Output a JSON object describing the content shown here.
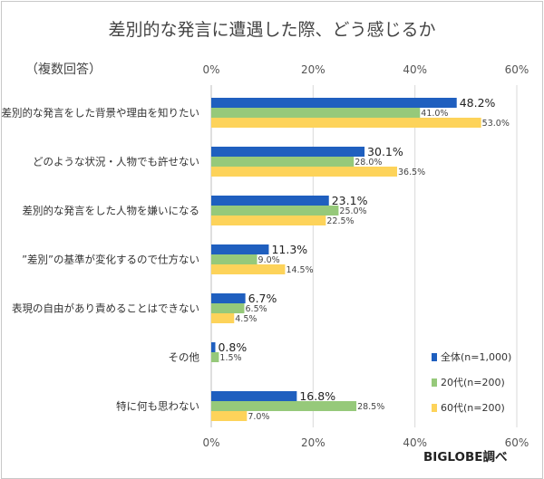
{
  "chart_data": {
    "type": "bar",
    "orientation": "horizontal",
    "title": "差別的な発言に遭遇した際、どう感じるか",
    "subtitle": "（複数回答）",
    "source": "BIGLOBE調べ",
    "xlim": [
      0,
      60
    ],
    "x_ticks": [
      0,
      20,
      40,
      60
    ],
    "x_tick_labels": [
      "0%",
      "20%",
      "40%",
      "60%"
    ],
    "grid": true,
    "legend_position": "right",
    "categories": [
      "差別的な発言をした背景や理由を知りたい",
      "どのような状況・人物でも許せない",
      "差別的な発言をした人物を嫌いになる",
      "”差別”の基準が変化するので仕方ない",
      "表現の自由があり責めることはできない",
      "その他",
      "特に何も思わない"
    ],
    "series": [
      {
        "name": "全体(n=1,000)",
        "color": "#1f5fbf",
        "values": [
          48.2,
          30.1,
          23.1,
          11.3,
          6.7,
          0.8,
          16.8
        ],
        "labels": [
          "48.2%",
          "30.1%",
          "23.1%",
          "11.3%",
          "6.7%",
          "0.8%",
          "16.8%"
        ]
      },
      {
        "name": "20代(n=200)",
        "color": "#96c97a",
        "values": [
          41.0,
          28.0,
          25.0,
          9.0,
          6.5,
          1.5,
          28.5
        ],
        "labels": [
          "41.0%",
          "28.0%",
          "25.0%",
          "9.0%",
          "6.5%",
          "1.5%",
          "28.5%"
        ]
      },
      {
        "name": "60代(n=200)",
        "color": "#fdd35a",
        "values": [
          53.0,
          36.5,
          22.5,
          14.5,
          4.5,
          0.0,
          7.0
        ],
        "labels": [
          "53.0%",
          "36.5%",
          "22.5%",
          "14.5%",
          "4.5%",
          "",
          "7.0%"
        ]
      }
    ]
  }
}
